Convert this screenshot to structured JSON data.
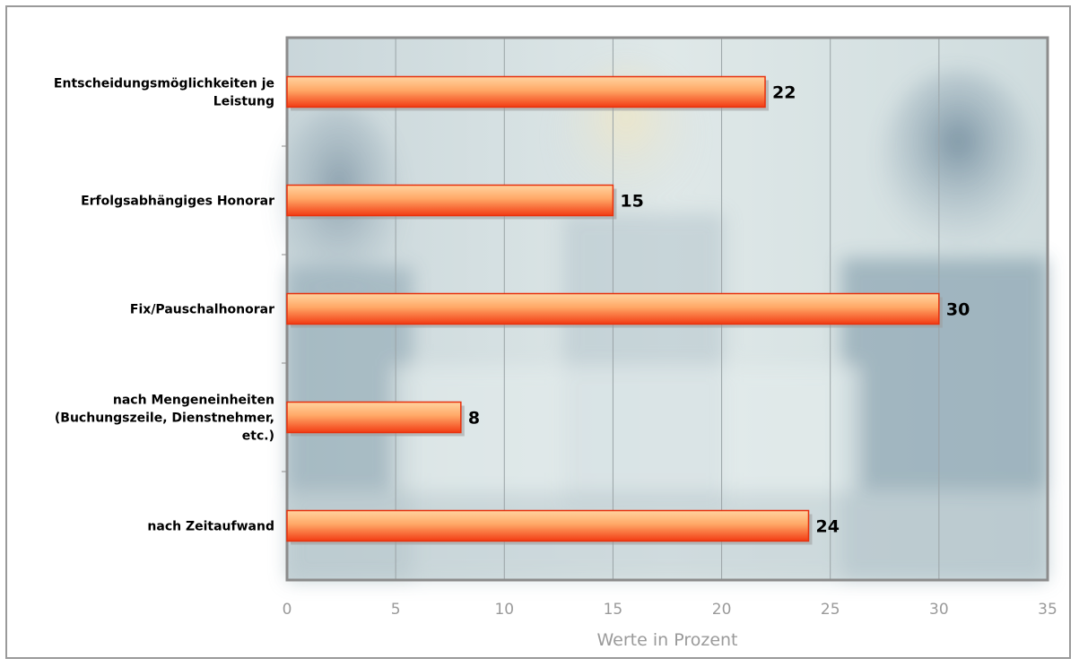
{
  "chart_data": {
    "type": "bar",
    "orientation": "horizontal",
    "categories": [
      [
        "Entscheidungsmöglichkeiten je",
        "Leistung"
      ],
      [
        "Erfolgsabhängiges Honorar"
      ],
      [
        "Fix/Pauschalhonorar"
      ],
      [
        "nach Mengeneinheiten",
        "(Buchungszeile, Dienstnehmer,",
        "etc.)"
      ],
      [
        "nach Zeitaufwand"
      ]
    ],
    "values": [
      22,
      15,
      30,
      8,
      24
    ],
    "value_labels": [
      "22",
      "15",
      "30",
      "8",
      "24"
    ],
    "xlabel": "Werte in Prozent",
    "xlim": [
      0,
      35
    ],
    "xticks": [
      "0",
      "5",
      "10",
      "15",
      "20",
      "25",
      "30",
      "35"
    ],
    "grid": "vertical",
    "bar_color": "#f2451c",
    "bar_highlight": "#ffc890",
    "plot_background": "photo of a business meeting (decorative)"
  }
}
